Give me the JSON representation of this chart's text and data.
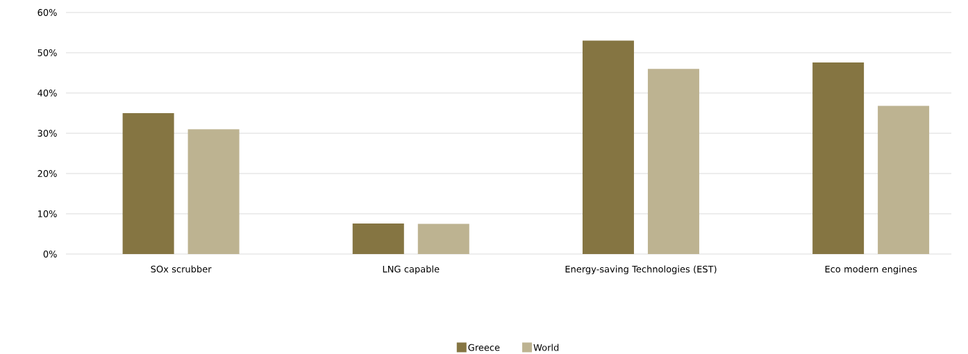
{
  "chart_data": {
    "type": "bar",
    "categories": [
      "SOx scrubber",
      "LNG capable",
      "Energy-saving Technologies (EST)",
      "Eco modern engines"
    ],
    "series": [
      {
        "name": "Greece",
        "color": "#857542",
        "values": [
          35,
          7.6,
          53,
          47.6
        ]
      },
      {
        "name": "World",
        "color": "#bdb391",
        "values": [
          31,
          7.5,
          46,
          36.8
        ]
      }
    ],
    "ylim": [
      0,
      60
    ],
    "yticks": [
      {
        "value": 0,
        "label": "0%"
      },
      {
        "value": 10,
        "label": "10%"
      },
      {
        "value": 20,
        "label": "20%"
      },
      {
        "value": 30,
        "label": "30%"
      },
      {
        "value": 40,
        "label": "40%"
      },
      {
        "value": 50,
        "label": "50%"
      },
      {
        "value": 60,
        "label": "60%"
      }
    ],
    "grid": "y",
    "legend": "bottom"
  }
}
